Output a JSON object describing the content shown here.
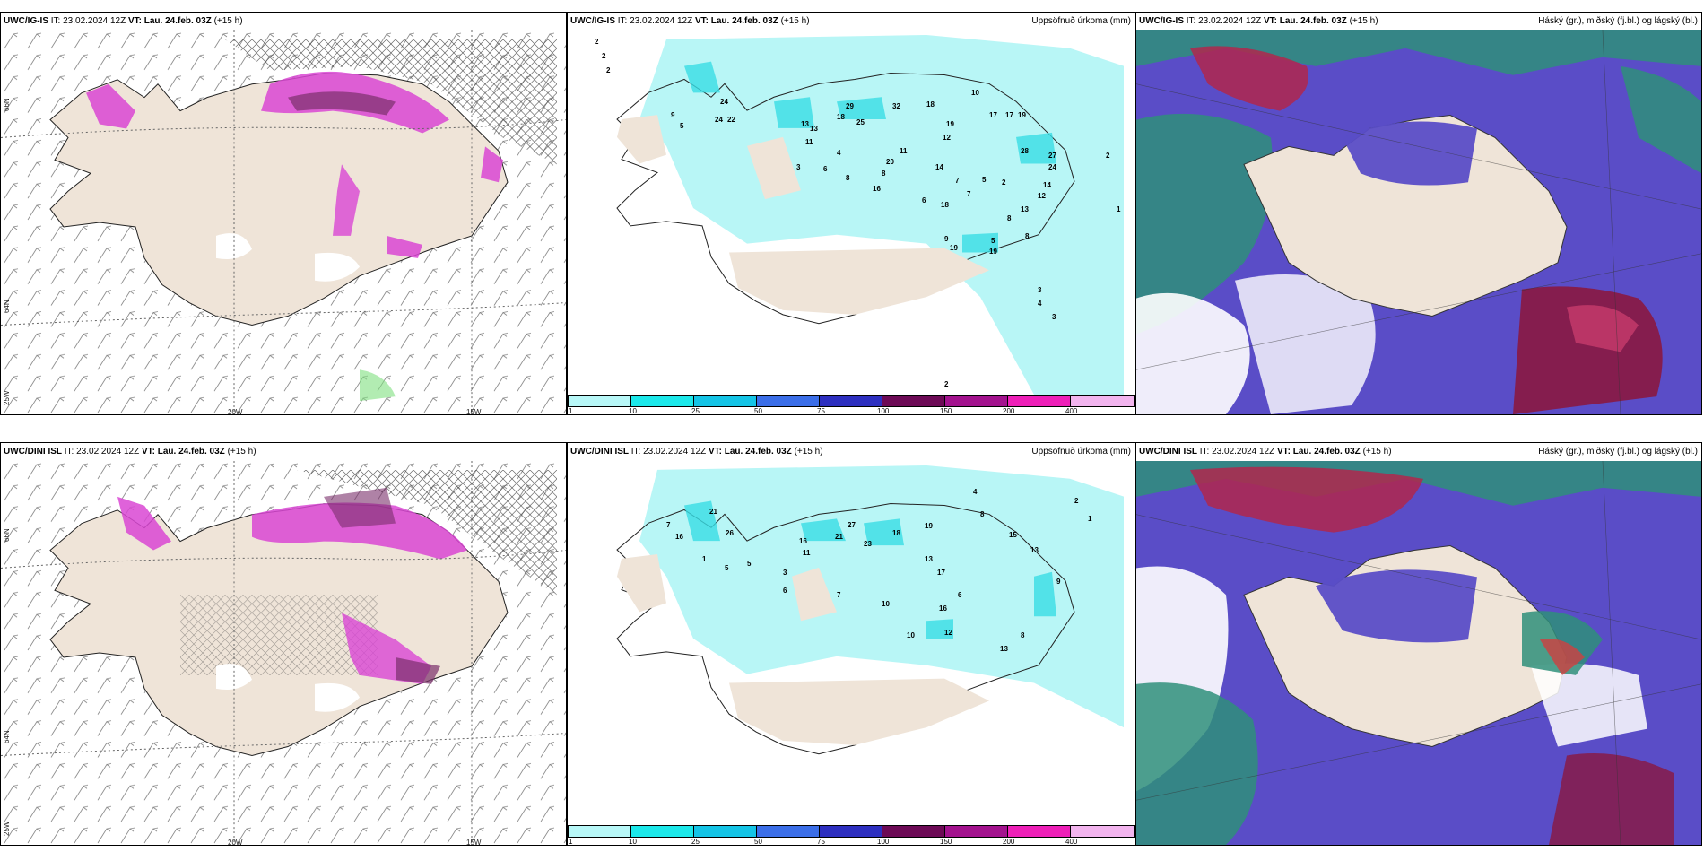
{
  "colors": {
    "land": "#efe4d8",
    "wind_barb": "#555555",
    "precip_pink": "#d946d4",
    "precip_dark": "#7a2f6b",
    "precip_cyan": "#b8f6f6",
    "precip_cyan_mid": "#38dde5",
    "cloud_high": "#6a3fb5",
    "cloud_mid": "#1f8a6e",
    "cloud_low": "#e03a3a"
  },
  "rows": [
    {
      "model": "UWC/IG-IS",
      "it_label": "IT:",
      "it_value": "23.02.2024 12Z",
      "vt_label": "VT:",
      "vt_value": "Lau. 24.feb. 03Z",
      "lead": "(+15 h)"
    },
    {
      "model": "UWC/DINI ISL",
      "it_label": "IT:",
      "it_value": "23.02.2024 12Z",
      "vt_label": "VT:",
      "vt_value": "Lau. 24.feb. 03Z",
      "lead": "(+15 h)"
    }
  ],
  "titles": {
    "precip": "Uppsöfnuð úrkoma (mm)",
    "clouds": "Háský (gr.), miðský (fj.bl.) og lágský (bl.)"
  },
  "axis_labels": {
    "lat_66": "66N",
    "lat_64": "64N",
    "lon_25": "25W",
    "lon_20": "20W",
    "lon_15": "15W"
  },
  "legend": {
    "ticks": [
      "1",
      "10",
      "25",
      "50",
      "75",
      "100",
      "150",
      "200",
      "400"
    ],
    "colors": [
      "#b7f7f7",
      "#1ce8ea",
      "#14c4e6",
      "#3b6ee8",
      "#2d2fc0",
      "#6d0a56",
      "#a3128e",
      "#ee1fb8",
      "#f2b4ee"
    ]
  },
  "precip_values": {
    "row1": [
      "2",
      "2",
      "24",
      "24",
      "22",
      "9",
      "5",
      "13",
      "13",
      "11",
      "29",
      "18",
      "25",
      "32",
      "18",
      "19",
      "12",
      "10",
      "17",
      "17",
      "19",
      "2",
      "28",
      "27",
      "24",
      "14",
      "12",
      "2",
      "20",
      "11",
      "14",
      "4",
      "3",
      "6",
      "7",
      "5",
      "8",
      "8",
      "16",
      "6",
      "18",
      "7",
      "13",
      "8",
      "5",
      "9",
      "19",
      "19",
      "8",
      "3",
      "4",
      "3",
      "2",
      "1",
      "2"
    ],
    "row2": [
      "21",
      "26",
      "7",
      "1",
      "5",
      "27",
      "21",
      "23",
      "18",
      "19",
      "13",
      "16",
      "11",
      "17",
      "15",
      "13",
      "16",
      "10",
      "12",
      "9",
      "4",
      "8",
      "1",
      "2",
      "5",
      "3",
      "6",
      "7",
      "6",
      "10",
      "16",
      "13",
      "8"
    ]
  }
}
